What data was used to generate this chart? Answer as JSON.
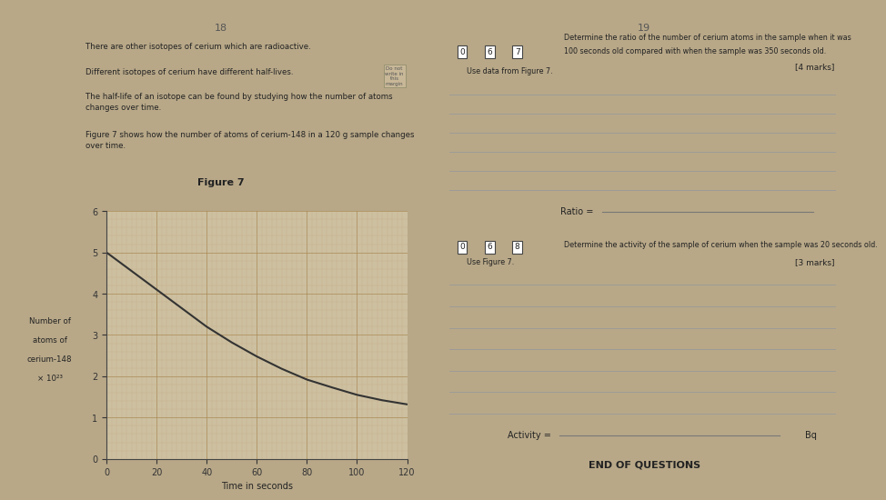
{
  "fig_title": "Figure 7",
  "xlabel": "Time in seconds",
  "ylabel_line1": "Number of",
  "ylabel_line2": "atoms of",
  "ylabel_line3": "cerium-148",
  "ylabel_line4": "× 10²³",
  "x_data": [
    0,
    10,
    20,
    30,
    40,
    50,
    60,
    70,
    80,
    90,
    100,
    110,
    120
  ],
  "y_data": [
    5.0,
    4.55,
    4.1,
    3.65,
    3.2,
    2.82,
    2.48,
    2.18,
    1.92,
    1.73,
    1.55,
    1.42,
    1.32
  ],
  "xlim": [
    0,
    120
  ],
  "ylim": [
    0,
    6
  ],
  "xticks": [
    0,
    20,
    40,
    60,
    80,
    100,
    120
  ],
  "yticks": [
    0,
    1,
    2,
    3,
    4,
    5,
    6
  ],
  "page_left_num": "18",
  "page_right_num": "19",
  "text_left_1": "There are other isotopes of cerium which are radioactive.",
  "text_left_2": "Different isotopes of cerium have different half-lives.",
  "text_left_3": "The half-life of an isotope can be found by studying how the number of atoms\nchanges over time.",
  "text_left_4": "Figure 7 shows how the number of atoms of cerium-148 in a 120 g sample changes\nover time.",
  "right_q1_box": "0 6 7",
  "right_q1_text1": "Determine the ratio of the number of cerium atoms in the sample when it was",
  "right_q1_text2": "100 seconds old compared with when the sample was 350 seconds old.",
  "right_q1_marks": "[4 marks]",
  "right_q1_use": "Use data from Figure 7.",
  "right_q1_answer": "Ratio =",
  "right_q2_box": "0 6 8",
  "right_q2_text": "Determine the activity of the sample of cerium when the sample was 20 seconds old.",
  "right_q2_use": "Use Figure 7.",
  "right_q2_marks": "[3 marks]",
  "right_q2_answer": "Activity =",
  "right_q2_unit": "Bq",
  "end_text": "END OF QUESTIONS",
  "bg_color": "#b8a888",
  "page_bg_left": "#d8ccb4",
  "page_bg_right": "#ddd0ba",
  "grid_minor_color": "#c8aa88",
  "grid_major_color": "#aa8855",
  "plot_bg": "#ccc0a0",
  "curve_color": "#333333",
  "line_color_answer": "#888888",
  "text_color": "#222222",
  "box_bg": "white",
  "box_edge": "#444444"
}
